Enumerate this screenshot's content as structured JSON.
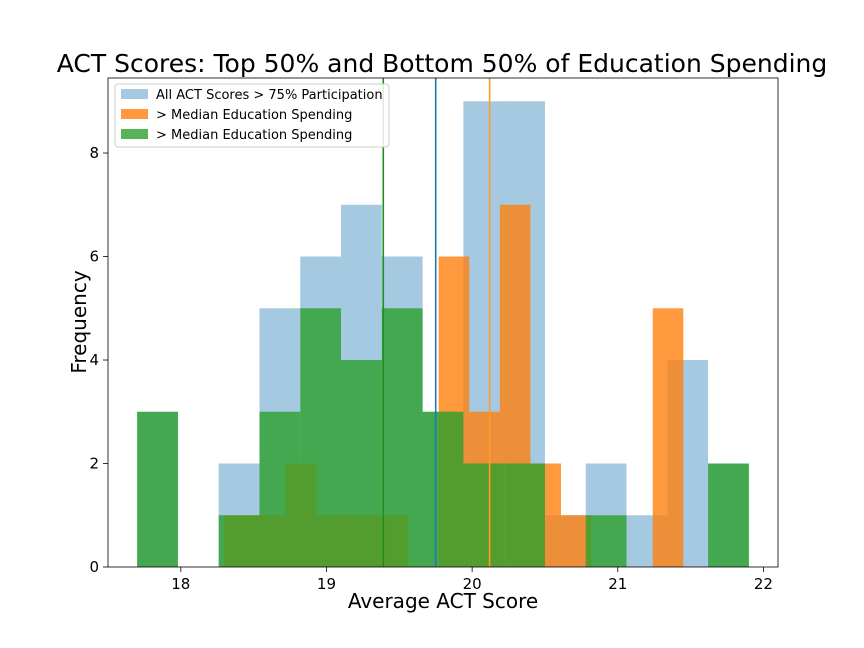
{
  "chart_data": {
    "type": "bar",
    "title": "ACT Scores: Top 50% and Bottom 50% of Education Spending",
    "xlabel": "Average ACT Score",
    "ylabel": "Frequency",
    "xlim": [
      17.5,
      22.1
    ],
    "ylim": [
      0,
      9.45
    ],
    "xticks": [
      18,
      19,
      20,
      21,
      22
    ],
    "yticks": [
      0,
      2,
      4,
      6,
      8
    ],
    "legend_position": "top-left",
    "series": [
      {
        "name": "All ACT Scores > 75% Participation",
        "color": "#1f77b4",
        "opacity": 0.4,
        "bins": [
          {
            "x0": 17.7,
            "x1": 17.98,
            "count": 3
          },
          {
            "x0": 17.98,
            "x1": 18.26,
            "count": 0
          },
          {
            "x0": 18.26,
            "x1": 18.54,
            "count": 2
          },
          {
            "x0": 18.54,
            "x1": 18.82,
            "count": 5
          },
          {
            "x0": 18.82,
            "x1": 19.1,
            "count": 6
          },
          {
            "x0": 19.1,
            "x1": 19.38,
            "count": 7
          },
          {
            "x0": 19.38,
            "x1": 19.66,
            "count": 6
          },
          {
            "x0": 19.66,
            "x1": 19.94,
            "count": 3
          },
          {
            "x0": 19.94,
            "x1": 20.22,
            "count": 9
          },
          {
            "x0": 20.22,
            "x1": 20.5,
            "count": 9
          },
          {
            "x0": 20.5,
            "x1": 20.78,
            "count": 1
          },
          {
            "x0": 20.78,
            "x1": 21.06,
            "count": 2
          },
          {
            "x0": 21.06,
            "x1": 21.34,
            "count": 1
          },
          {
            "x0": 21.34,
            "x1": 21.62,
            "count": 4
          },
          {
            "x0": 21.62,
            "x1": 21.9,
            "count": 2
          }
        ],
        "mean": 19.75,
        "mean_line_color": "#1f77b4"
      },
      {
        "name": "> Median Education Spending",
        "color": "#ff7f0e",
        "opacity": 0.8,
        "bins": [
          {
            "x0": 18.3,
            "x1": 18.51,
            "count": 1
          },
          {
            "x0": 18.51,
            "x1": 18.72,
            "count": 1
          },
          {
            "x0": 18.72,
            "x1": 18.93,
            "count": 2
          },
          {
            "x0": 18.93,
            "x1": 19.14,
            "count": 1
          },
          {
            "x0": 19.14,
            "x1": 19.35,
            "count": 1
          },
          {
            "x0": 19.35,
            "x1": 19.56,
            "count": 1
          },
          {
            "x0": 19.56,
            "x1": 19.77,
            "count": 0
          },
          {
            "x0": 19.77,
            "x1": 19.98,
            "count": 6
          },
          {
            "x0": 19.98,
            "x1": 20.19,
            "count": 3
          },
          {
            "x0": 20.19,
            "x1": 20.4,
            "count": 7
          },
          {
            "x0": 20.4,
            "x1": 20.61,
            "count": 2
          },
          {
            "x0": 20.61,
            "x1": 20.82,
            "count": 1
          },
          {
            "x0": 20.82,
            "x1": 21.03,
            "count": 0
          },
          {
            "x0": 21.03,
            "x1": 21.24,
            "count": 0
          },
          {
            "x0": 21.24,
            "x1": 21.45,
            "count": 5
          }
        ],
        "mean": 20.12,
        "mean_line_color": "#ff9d27"
      },
      {
        "name": "> Median Education Spending",
        "color": "#2ca02c",
        "opacity": 0.8,
        "bins": [
          {
            "x0": 17.7,
            "x1": 17.98,
            "count": 3
          },
          {
            "x0": 17.98,
            "x1": 18.26,
            "count": 0
          },
          {
            "x0": 18.26,
            "x1": 18.54,
            "count": 1
          },
          {
            "x0": 18.54,
            "x1": 18.82,
            "count": 3
          },
          {
            "x0": 18.82,
            "x1": 19.1,
            "count": 5
          },
          {
            "x0": 19.1,
            "x1": 19.38,
            "count": 4
          },
          {
            "x0": 19.38,
            "x1": 19.66,
            "count": 5
          },
          {
            "x0": 19.66,
            "x1": 19.94,
            "count": 3
          },
          {
            "x0": 19.94,
            "x1": 20.22,
            "count": 2
          },
          {
            "x0": 20.22,
            "x1": 20.5,
            "count": 2
          },
          {
            "x0": 20.5,
            "x1": 20.78,
            "count": 0
          },
          {
            "x0": 20.78,
            "x1": 21.06,
            "count": 1
          },
          {
            "x0": 21.06,
            "x1": 21.34,
            "count": 0
          },
          {
            "x0": 21.34,
            "x1": 21.62,
            "count": 0
          },
          {
            "x0": 21.62,
            "x1": 21.9,
            "count": 2
          }
        ],
        "mean": 19.39,
        "mean_line_color": "#1f8f1f"
      }
    ]
  }
}
